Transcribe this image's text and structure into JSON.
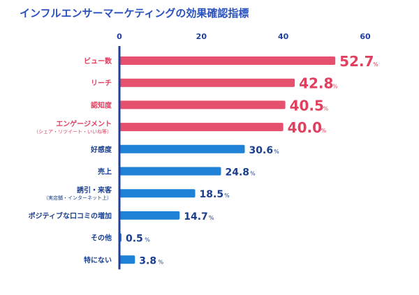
{
  "chart_data": {
    "type": "bar",
    "orientation": "horizontal",
    "title": "インフルエンサーマーケティングの効果確認指標",
    "xlim": [
      0,
      60
    ],
    "x_ticks": [
      "0",
      "20",
      "40",
      "60"
    ],
    "grid": false,
    "legend": "none",
    "unit": "%",
    "categories": [
      {
        "label": "ビュー数",
        "sublabel": ""
      },
      {
        "label": "リーチ",
        "sublabel": ""
      },
      {
        "label": "認知度",
        "sublabel": ""
      },
      {
        "label": "エンゲージメント",
        "sublabel": "（シェア・リツイート・いいね等）"
      },
      {
        "label": "好感度",
        "sublabel": ""
      },
      {
        "label": "売上",
        "sublabel": ""
      },
      {
        "label": "誘引・来客",
        "sublabel": "（実店舗・インターネット上）"
      },
      {
        "label": "ポジティブな口コミの増加",
        "sublabel": ""
      },
      {
        "label": "その他",
        "sublabel": ""
      },
      {
        "label": "特にない",
        "sublabel": ""
      }
    ],
    "values": [
      52.7,
      42.8,
      40.5,
      40.0,
      30.6,
      24.8,
      18.5,
      14.7,
      0.5,
      3.8
    ],
    "value_labels": [
      "52.7",
      "42.8",
      "40.5",
      "40.0",
      "30.6",
      "24.8",
      "18.5",
      "14.7",
      "0.5",
      "3.8"
    ],
    "highlight_count": 4
  },
  "colors": {
    "title": "#2a52be",
    "axis": "#1f3f99",
    "highlight": "#e5506e",
    "highlight_text": "#e0405f",
    "normal": "#1f82d6",
    "normal_text": "#1a3f8f"
  }
}
